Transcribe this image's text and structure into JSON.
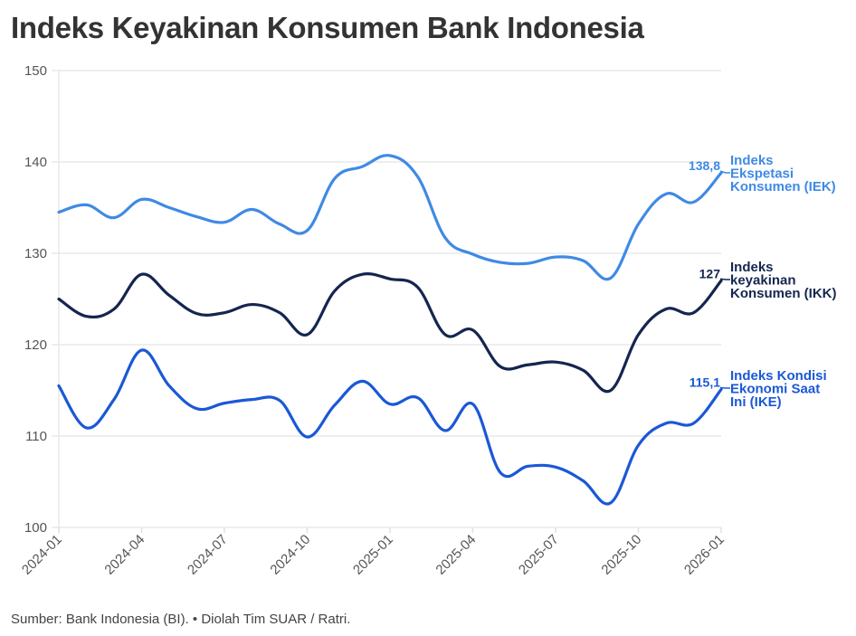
{
  "title": "Indeks Keyakinan Konsumen Bank Indonesia",
  "footer": "Sumber: Bank Indonesia (BI). • Diolah Tim SUAR / Ratri.",
  "chart_data": {
    "type": "line",
    "title": "Indeks Keyakinan Konsumen Bank Indonesia",
    "xlabel": "",
    "ylabel": "",
    "ylim": [
      100,
      150
    ],
    "yticks": [
      100,
      110,
      120,
      130,
      140,
      150
    ],
    "xtick_labels": [
      "2024-01",
      "2024-04",
      "2024-07",
      "2024-10",
      "2025-01",
      "2025-04",
      "2025-07",
      "2025-10",
      "2026-01"
    ],
    "grid": "horizontal",
    "legend_position": "inline-right",
    "x": [
      "2024-01",
      "2024-02",
      "2024-03",
      "2024-04",
      "2024-05",
      "2024-06",
      "2024-07",
      "2024-08",
      "2024-09",
      "2024-10",
      "2024-11",
      "2024-12",
      "2025-01",
      "2025-02",
      "2025-03",
      "2025-04",
      "2025-05",
      "2025-06",
      "2025-07",
      "2025-08",
      "2025-09",
      "2025-10",
      "2025-11",
      "2025-12",
      "2026-01"
    ],
    "series": [
      {
        "name": "Indeks Ekspetasi Konsumen (IEK)",
        "label_lines": [
          "Indeks",
          "Ekspetasi",
          "Konsumen (IEK)"
        ],
        "end_label": "138,8",
        "color": "#3F8AE4",
        "values": [
          134.5,
          135.3,
          133.9,
          135.9,
          135.0,
          134.0,
          133.4,
          134.8,
          133.2,
          132.5,
          138.2,
          139.5,
          140.7,
          138.4,
          131.7,
          129.9,
          129.0,
          128.9,
          129.6,
          129.2,
          127.3,
          133.2,
          136.5,
          135.6,
          138.8
        ]
      },
      {
        "name": "Indeks keyakinan Konsumen (IKK)",
        "label_lines": [
          "Indeks",
          "keyakinan",
          "Konsumen (IKK)"
        ],
        "end_label": "127",
        "color": "#14264F",
        "values": [
          125.0,
          123.1,
          123.9,
          127.7,
          125.4,
          123.4,
          123.5,
          124.4,
          123.5,
          121.1,
          125.9,
          127.7,
          127.2,
          126.3,
          121.1,
          121.6,
          117.6,
          117.8,
          118.1,
          117.2,
          115.0,
          121.1,
          123.9,
          123.5,
          127.0
        ]
      },
      {
        "name": "Indeks Kondisi Ekonomi Saat Ini (IKE)",
        "label_lines": [
          "Indeks Kondisi",
          "Ekonomi Saat",
          "Ini (IKE)"
        ],
        "end_label": "115,1",
        "color": "#1A58D6",
        "values": [
          115.5,
          110.9,
          114.0,
          119.4,
          115.5,
          113.0,
          113.6,
          114.0,
          113.9,
          109.9,
          113.4,
          116.0,
          113.5,
          114.2,
          110.6,
          113.5,
          106.0,
          106.7,
          106.6,
          105.1,
          102.7,
          109.0,
          111.4,
          111.4,
          115.1
        ]
      }
    ]
  }
}
